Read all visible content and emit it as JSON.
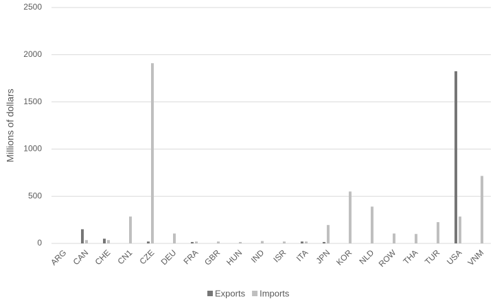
{
  "chart_data": {
    "type": "bar",
    "y_label": "Millions of dollars",
    "categories": [
      "ARG",
      "CAN",
      "CHE",
      "CN1",
      "CZE",
      "DEU",
      "FRA",
      "GBR",
      "HUN",
      "IND",
      "ISR",
      "ITA",
      "JPN",
      "KOR",
      "NLD",
      "ROW",
      "THA",
      "TUR",
      "USA",
      "VNM"
    ],
    "series": [
      {
        "name": "Exports",
        "color": "#767676",
        "values": [
          0,
          150,
          50,
          0,
          20,
          0,
          15,
          0,
          0,
          0,
          0,
          20,
          15,
          0,
          0,
          0,
          0,
          0,
          1825,
          0
        ]
      },
      {
        "name": "Imports",
        "color": "#bfbfbf",
        "values": [
          0,
          35,
          35,
          285,
          1910,
          105,
          20,
          20,
          15,
          25,
          20,
          20,
          195,
          550,
          390,
          105,
          100,
          225,
          285,
          715
        ]
      }
    ],
    "ylim": [
      0,
      2500
    ],
    "yticks": [
      0,
      500,
      1000,
      1500,
      2000,
      2500
    ],
    "grid": true,
    "legend": "bottom"
  }
}
